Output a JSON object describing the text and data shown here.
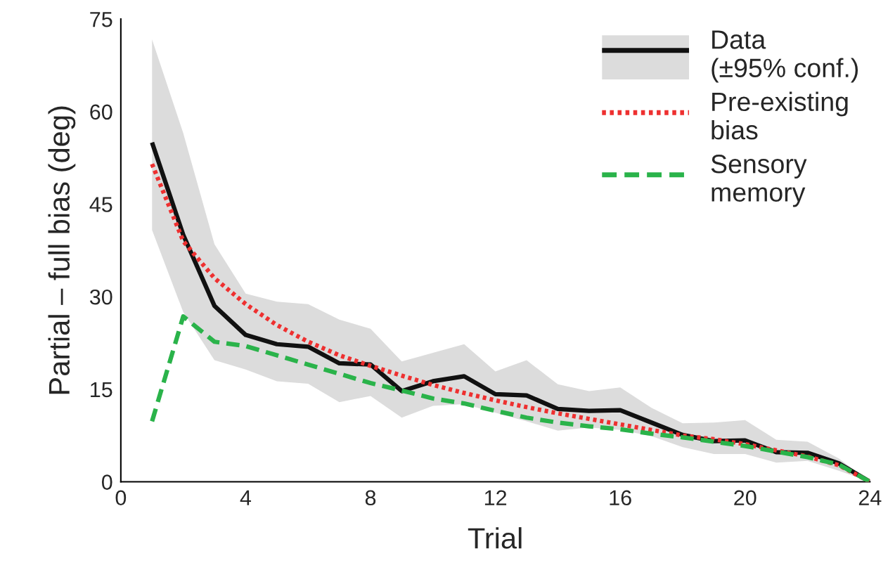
{
  "chart_data": {
    "type": "line",
    "xlabel": "Trial",
    "ylabel": "Partial – full bias (deg)",
    "x": [
      1,
      2,
      3,
      4,
      5,
      6,
      7,
      8,
      9,
      10,
      11,
      12,
      13,
      14,
      15,
      16,
      17,
      18,
      19,
      20,
      21,
      22,
      23,
      24
    ],
    "xlim": [
      0,
      24
    ],
    "xticks": [
      0,
      4,
      8,
      12,
      16,
      20,
      24
    ],
    "ylim": [
      0,
      75
    ],
    "yticks": [
      0,
      15,
      30,
      45,
      60,
      75
    ],
    "grid": false,
    "legend": "top right",
    "series": [
      {
        "name": "Data\n(±95% conf.)",
        "color": "#111111",
        "line_style": "solid",
        "values": [
          55,
          40,
          28.5,
          23.8,
          22.3,
          21.9,
          19.2,
          19,
          14.7,
          16.3,
          17.1,
          14.2,
          14,
          11.8,
          11.5,
          11.6,
          9.6,
          7.6,
          6.6,
          6.7,
          4.8,
          4.7,
          3,
          0
        ],
        "upper": [
          71.7,
          56.5,
          38.5,
          30.5,
          29.2,
          28.8,
          26.3,
          24.8,
          19.5,
          20.9,
          22.3,
          17.9,
          19.7,
          15.8,
          14.7,
          15.3,
          12,
          9.5,
          9.6,
          10,
          6.8,
          6.5,
          3.8,
          0
        ],
        "lower": [
          40.8,
          27.5,
          19.7,
          18.2,
          16.3,
          15.9,
          12.9,
          13.9,
          10.4,
          12.3,
          12.6,
          11.2,
          9.8,
          8.3,
          8.8,
          8.4,
          7.4,
          5.6,
          4.5,
          4.5,
          3.1,
          3.4,
          1.8,
          0
        ]
      },
      {
        "name": "Pre-existing\nbias",
        "color": "#ee3030",
        "line_style": "dotted",
        "values": [
          51.5,
          39,
          33,
          28.8,
          25.4,
          22.7,
          20.5,
          18.8,
          17.2,
          15.7,
          14.4,
          13.2,
          12.1,
          11.1,
          10.2,
          9.3,
          8.4,
          7.5,
          6.9,
          6.1,
          5.1,
          4.1,
          2.7,
          0
        ]
      },
      {
        "name": "Sensory\nmemory",
        "color": "#2ab34a",
        "line_style": "dashed",
        "values": [
          9.8,
          26.8,
          22.7,
          22,
          20.5,
          19,
          17.5,
          16,
          14.8,
          13.5,
          12.7,
          11.5,
          10.4,
          9.6,
          9,
          8.5,
          7.8,
          7.2,
          6.5,
          5.8,
          4.9,
          4,
          2.8,
          0
        ]
      }
    ]
  }
}
